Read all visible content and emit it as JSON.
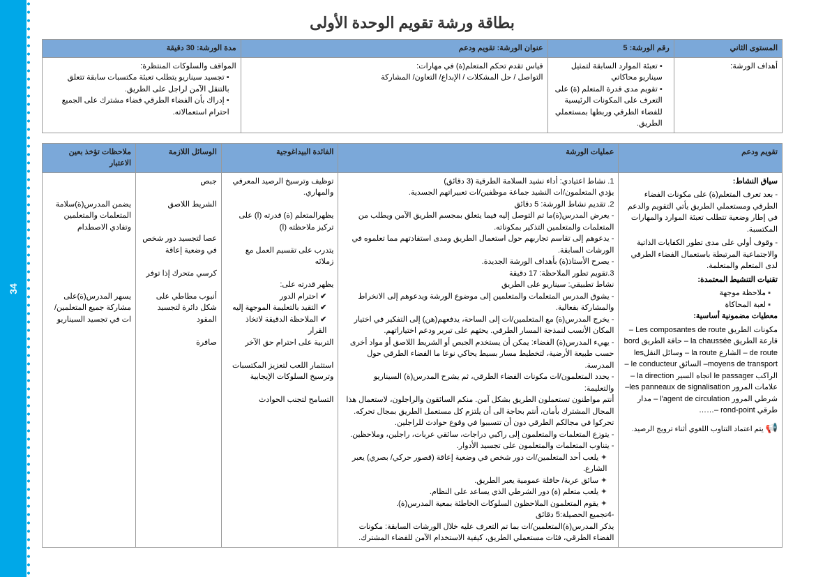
{
  "pageNumber": "34",
  "title": "بطاقة ورشة تقويم الوحدة الأولى",
  "table1": {
    "headers": [
      "المستوى الثاني",
      "رقم الورشة: 5",
      "عنوان الورشة: تقويم  ودعم",
      "مدة الورشة: 30 دقيقة"
    ],
    "row1Label": "أهداف الورشة:",
    "col1": [
      "تعبئة الموارد السابقة لتمثيل سيناريو محاكاتي",
      "تقويم مدى قدرة المتعلم (ة) على التعرف على المكونات الرئيسية للفضاء الطرقي وربطها بمستعملي الطريق."
    ],
    "col2Intro": "قياس تقدم تحكم المتعلم(ة) في مهارات:",
    "col2Sub": "التواصل / حل المشكلات / الإبداع/ التعاون/ المشاركة",
    "col3Intro": "المواقف والسلوكات المنتظرة:",
    "col3": [
      "تجسيد سيناريو يتطلب تعبئة مكتسبات سابقة تتعلق بالتنقل الآمن لراجل على الطريق.",
      "إدراك بأن الفضاء الطرقي فضاء مشترك على الجميع احترام استعمالاته."
    ]
  },
  "table2": {
    "headers": [
      "تقويم ودعم",
      "عمليات الورشة",
      "الفائدة البيداغوجية",
      "الوسائل اللازمة",
      "ملاحظات تؤخذ بعين الاعتبار"
    ],
    "context": {
      "t1": "سياق النشاط:",
      "p1": "- بعد تعرف المتعلم(ة) على مكونات الفضاء الطرقي ومستعملي الطريق يأتي التقويم والدعم في إطار وضعية تتطلب تعبئة الموارد والمهارات المكتسبة.",
      "p2": "- وقوف أولي على مدى تطور الكفايات الذاتية والاجتماعية المرتبطة باستعمال الفضاء الطرقي لدى المتعلم والمتعلمة.",
      "t2": "تقنيات التنشيط المعتمدة:",
      "tech": [
        "ملاحظة موجهة",
        "لعبة المحاكاة"
      ],
      "t3": "معطيات مضمونية أساسية:",
      "p3": "مكونات الطريق Les composantes de route – قارعة الطريق la chaussée – حافة الطريق bord de route – الشارع la route – وسائل النقلles moyens de transport– السائق le conducteur – الراكب le passager اتجاه السير la direction – علامات المرور les panneaux de signalisation– شرطي المرور l'agent de circulation – مدار طرقي rond-point –……",
      "note": "يتم اعتماد التناوب اللغوي أثناء ترويج الرصيد."
    },
    "ops": {
      "i1n": "1.     نشاط اعتيادي: أداء نشيد السلامة الطرقية (3 دقائق)",
      "i1t": "يؤدي المتعلمون/ات النشيد جماعة موظفين/ات تعبيراتهم الجسدية.",
      "i2n": "2.     تقديم نشاط الورشة: 5 دقائق",
      "i2a": "- يعرض المدرس(ة)ما تم التوصل إليه فيما يتعلق بمجسم الطريق الآمن ويطلب من المتعلمات والمتعلمين التذكير بمكوناته.",
      "i2b": "- يدعوهم إلى تقاسم تجاربهم حول استعمال الطريق ومدى استفادتهم مما تعلموه في الورشات السابقة.",
      "i2c": "- يصرح الأستاذ(ة) بأهداف الورشة الجديدة.",
      "i3n": "3.تقويم تطور الملاحظة: 17 دقيقة",
      "i3a": "نشاط تطبيقي: سيناريو على الطريق",
      "i3b": "- يشوق المدرس المتعلمات والمتعلمين إلى موضوع الورشة ويدعوهم إلى الانخراط والمشاركة بفعالية.",
      "i3c": "- يخرج المدرس(ة) مع المتعلمين/ات إلى الساحة، يدفعهم(هن) إلى التفكير في اختيار المكان الأنسب لنمذجة المسار الطرقي. يحثهم على تبرير ودعم اختياراتهم.",
      "i3d": "- يهيء المدرس(ة) الفضاء: يمكن أن يستخدم الجبص أو الشريط اللاصق أو مواد أخرى حسب طبيعة الأرضية، لتخطيط مسار بسيط يحاكي نوعا ما الفضاء الطرقي حول المدرسة.",
      "i3e": "- يحدد المتعلمون/ات مكونات الفضاء الطرقي، ثم يشرح المدرس(ة) السيناريو والتعليمة:",
      "i3f": "أنتم مواطنون تستعملون الطريق بشكل آمن. منكم السائقون والراجلون، لاستعمال هذا المجال المشترك بأمان، أنتم بحاجة الى أن يلتزم كل مستعمل الطريق بمجال تحركه. تحركوا في مجالكم الطرقي دون أن تتسببوا في وقوع حوادث للراجلين.",
      "i3g": "- يتوزع المتعلمات والمتعلمون إلى راكبي دراجات، سائقي عربات، راجلين، وملاحظين.",
      "i3h": "- يتناوب المتعلمات والمتعلمون على تجسيد الأدوار.",
      "r1": "يلعب أحد المتعلمين/ات دور شخص في وضعية إعاقة (قصور حركي/ بصري) يعبر الشارع.",
      "r2": "سائق عربة/ حافلة عمومية يعبر الطريق.",
      "r3": "يلعب متعلم (ة) دور الشرطي الذي يساعد على النظام.",
      "r4": "يقوم المتعلمون الملاحظون السلوكات الخاطئة بمعية المدرس(ة).",
      "i4n": "-4تجميع الحصيلة:5 دقائق",
      "i4t": "يذكر المدرس(ة)المتعلمين/ات بما تم التعرف عليه خلال الورشات السابقة: مكونات الفضاء الطرقي، فئات مستعملي الطريق، كيفية الاستخدام الآمن للفضاء المشترك."
    },
    "ben": {
      "b1": "توظيف وترسيخ الرصيد المعرفي والمهاري.",
      "b2": "يظهرالمتعلم (ة) قدرته (ا) على تركيز ملاحظته (ا)",
      "b3": "يتدرب على تقسيم العمل مع زملائه",
      "b4t": "يظهر قدرته على:",
      "b4a": "احترام الدور",
      "b4b": "التقيد بالتعليمة الموجهة إليه",
      "b4c": "الملاحظة الدقيقة لاتخاذ القرار",
      "b5": "التربية على احترام حق الآخر",
      "b6": "استثمار اللعب لتعزيز المكتسبات وترسيخ السلوكات الإيجابية",
      "b7": "التسامح لتجنب الحوادث"
    },
    "tools": {
      "t1": "جبص",
      "t2": "الشريط اللاصق",
      "t3": "عصا لتجسيد دور شخص في وضعية إعاقة",
      "t4": "كرسي متحرك إذا توفر",
      "t5": "أنبوب مطاطي على شكل دائرة لتجسيد المقود",
      "t6": "صافرة"
    },
    "notes": {
      "n1": "يضمن المدرس(ة)سلامة المتعلمات والمتعلمين وتفادي الاصطدام",
      "n2": "يسهر المدرس(ة)على مشاركة جميع المتعلمين/ات في تجسيد السيناريو"
    }
  }
}
